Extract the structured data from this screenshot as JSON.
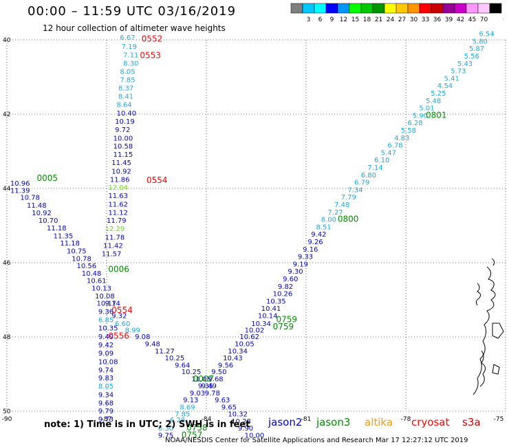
{
  "header": {
    "title": "00:00 – 11:59 UTC 03/16/2019",
    "subtitle": "12 hour collection of altimeter wave heights"
  },
  "colorbar": {
    "unit": "(ft)",
    "swatches": [
      {
        "label": "",
        "color": "#7f7f7f"
      },
      {
        "label": "3",
        "color": "#00c8ff"
      },
      {
        "label": "6",
        "color": "#00ffff"
      },
      {
        "label": "9",
        "color": "#0000ff"
      },
      {
        "label": "12",
        "color": "#0096ff"
      },
      {
        "label": "15",
        "color": "#00ff00"
      },
      {
        "label": "18",
        "color": "#00c800"
      },
      {
        "label": "21",
        "color": "#009600"
      },
      {
        "label": "24",
        "color": "#ffff00"
      },
      {
        "label": "27",
        "color": "#ffc800"
      },
      {
        "label": "30",
        "color": "#ff9600"
      },
      {
        "label": "33",
        "color": "#ff0000"
      },
      {
        "label": "36",
        "color": "#c80000"
      },
      {
        "label": "39",
        "color": "#960096"
      },
      {
        "label": "42",
        "color": "#c800c8"
      },
      {
        "label": "45",
        "color": "#ff96ff"
      },
      {
        "label": "70",
        "color": "#ffc8ff"
      },
      {
        "label": "",
        "color": "#000000"
      }
    ]
  },
  "axes": {
    "lat_ticks": [
      "40",
      "42",
      "44",
      "46",
      "48",
      "50"
    ],
    "lon_ticks": [
      "-90",
      "-87",
      "-84",
      "-81",
      "-78",
      "-75"
    ]
  },
  "series_colors": {
    "jason2": "#0000c8",
    "jason3": "#008c00",
    "altika": "#ff9600",
    "cryosat": "#ff0000",
    "s3a": "#c80000",
    "cyan": "#1eaadc",
    "lime": "#64e600"
  },
  "observations": [
    {
      "v": "6.67",
      "lon": -86.6,
      "lat": 40.0,
      "c": "cyan"
    },
    {
      "v": "7.19",
      "lon": -86.55,
      "lat": 40.24,
      "c": "cyan"
    },
    {
      "v": "7.11",
      "lon": -86.5,
      "lat": 40.47,
      "c": "cyan"
    },
    {
      "v": "8.30",
      "lon": -86.5,
      "lat": 40.69,
      "c": "cyan"
    },
    {
      "v": "8.05",
      "lon": -86.6,
      "lat": 40.92,
      "c": "cyan"
    },
    {
      "v": "7.85",
      "lon": -86.6,
      "lat": 41.14,
      "c": "cyan"
    },
    {
      "v": "8.37",
      "lon": -86.65,
      "lat": 41.36,
      "c": "cyan"
    },
    {
      "v": "8.41",
      "lon": -86.65,
      "lat": 41.58,
      "c": "cyan"
    },
    {
      "v": "8.64",
      "lon": -86.7,
      "lat": 41.81,
      "c": "cyan"
    },
    {
      "v": "10.40",
      "lon": -86.7,
      "lat": 42.04,
      "c": "jason2"
    },
    {
      "v": "10.19",
      "lon": -86.75,
      "lat": 42.26,
      "c": "jason2"
    },
    {
      "v": "9.72",
      "lon": -86.75,
      "lat": 42.48,
      "c": "jason2"
    },
    {
      "v": "10.00",
      "lon": -86.8,
      "lat": 42.71,
      "c": "jason2"
    },
    {
      "v": "10.58",
      "lon": -86.8,
      "lat": 42.93,
      "c": "jason2"
    },
    {
      "v": "11.15",
      "lon": -86.8,
      "lat": 43.15,
      "c": "jason2"
    },
    {
      "v": "11.45",
      "lon": -86.85,
      "lat": 43.37,
      "c": "jason2"
    },
    {
      "v": "10.92",
      "lon": -86.85,
      "lat": 43.6,
      "c": "jason2"
    },
    {
      "v": "11.86",
      "lon": -86.9,
      "lat": 43.82,
      "c": "jason2"
    },
    {
      "v": "12.04",
      "lon": -86.95,
      "lat": 44.04,
      "c": "lime"
    },
    {
      "v": "11.63",
      "lon": -86.95,
      "lat": 44.26,
      "c": "jason2"
    },
    {
      "v": "11.62",
      "lon": -86.95,
      "lat": 44.49,
      "c": "jason2"
    },
    {
      "v": "11.12",
      "lon": -86.95,
      "lat": 44.71,
      "c": "jason2"
    },
    {
      "v": "11.79",
      "lon": -87.0,
      "lat": 44.93,
      "c": "jason2"
    },
    {
      "v": "12.29",
      "lon": -87.05,
      "lat": 45.15,
      "c": "lime"
    },
    {
      "v": "11.78",
      "lon": -87.05,
      "lat": 45.38,
      "c": "jason2"
    },
    {
      "v": "11.42",
      "lon": -87.1,
      "lat": 45.6,
      "c": "jason2"
    },
    {
      "v": "11.57",
      "lon": -87.15,
      "lat": 45.82,
      "c": "jason2"
    },
    {
      "v": "10.96",
      "lon": -89.9,
      "lat": 43.93,
      "c": "jason2"
    },
    {
      "v": "11.39",
      "lon": -89.9,
      "lat": 44.12,
      "c": "jason2"
    },
    {
      "v": "10.78",
      "lon": -89.6,
      "lat": 44.31,
      "c": "jason2"
    },
    {
      "v": "11.48",
      "lon": -89.4,
      "lat": 44.52,
      "c": "jason2"
    },
    {
      "v": "10.92",
      "lon": -89.25,
      "lat": 44.72,
      "c": "jason2"
    },
    {
      "v": "10.70",
      "lon": -89.05,
      "lat": 44.93,
      "c": "jason2"
    },
    {
      "v": "11.18",
      "lon": -88.8,
      "lat": 45.13,
      "c": "jason2"
    },
    {
      "v": "11.35",
      "lon": -88.6,
      "lat": 45.34,
      "c": "jason2"
    },
    {
      "v": "11.18",
      "lon": -88.4,
      "lat": 45.54,
      "c": "jason2"
    },
    {
      "v": "10.75",
      "lon": -88.2,
      "lat": 45.75,
      "c": "jason2"
    },
    {
      "v": "10.78",
      "lon": -88.05,
      "lat": 45.95,
      "c": "jason2"
    },
    {
      "v": "10.56",
      "lon": -87.9,
      "lat": 46.15,
      "c": "jason2"
    },
    {
      "v": "10.48",
      "lon": -87.75,
      "lat": 46.35,
      "c": "jason2"
    },
    {
      "v": "10.61",
      "lon": -87.6,
      "lat": 46.55,
      "c": "jason2"
    },
    {
      "v": "10.13",
      "lon": -87.45,
      "lat": 46.75,
      "c": "jason2"
    },
    {
      "v": "10.08",
      "lon": -87.35,
      "lat": 46.96,
      "c": "jason2"
    },
    {
      "v": "10.17",
      "lon": -87.3,
      "lat": 47.16,
      "c": "jason2"
    },
    {
      "v": "9.14",
      "lon": -87.05,
      "lat": 47.16,
      "c": "jason2"
    },
    {
      "v": "9.36",
      "lon": -87.25,
      "lat": 47.38,
      "c": "jason2"
    },
    {
      "v": "9.32",
      "lon": -86.85,
      "lat": 47.49,
      "c": "jason2"
    },
    {
      "v": "6.85",
      "lon": -87.25,
      "lat": 47.6,
      "c": "cyan"
    },
    {
      "v": "6.60",
      "lon": -86.75,
      "lat": 47.7,
      "c": "cyan"
    },
    {
      "v": "10.35",
      "lon": -87.25,
      "lat": 47.82,
      "c": "jason2"
    },
    {
      "v": "8.99",
      "lon": -86.45,
      "lat": 47.88,
      "c": "cyan"
    },
    {
      "v": "9.49",
      "lon": -87.25,
      "lat": 48.06,
      "c": "jason2"
    },
    {
      "v": "9.08",
      "lon": -86.15,
      "lat": 48.06,
      "c": "jason2"
    },
    {
      "v": "9.42",
      "lon": -87.25,
      "lat": 48.28,
      "c": "jason2"
    },
    {
      "v": "9.48",
      "lon": -85.85,
      "lat": 48.25,
      "c": "jason2"
    },
    {
      "v": "9.09",
      "lon": -87.25,
      "lat": 48.5,
      "c": "jason2"
    },
    {
      "v": "11.27",
      "lon": -85.55,
      "lat": 48.44,
      "c": "jason2"
    },
    {
      "v": "10.08",
      "lon": -87.25,
      "lat": 48.73,
      "c": "jason2"
    },
    {
      "v": "10.25",
      "lon": -85.25,
      "lat": 48.63,
      "c": "jason2"
    },
    {
      "v": "9.74",
      "lon": -87.25,
      "lat": 48.95,
      "c": "jason2"
    },
    {
      "v": "9.64",
      "lon": -84.95,
      "lat": 48.82,
      "c": "jason2"
    },
    {
      "v": "9.83",
      "lon": -87.25,
      "lat": 49.17,
      "c": "jason2"
    },
    {
      "v": "10.25",
      "lon": -84.75,
      "lat": 49.0,
      "c": "jason2"
    },
    {
      "v": "8.05",
      "lon": -87.25,
      "lat": 49.39,
      "c": "cyan"
    },
    {
      "v": "11.05",
      "lon": -84.45,
      "lat": 49.19,
      "c": "jason2"
    },
    {
      "v": "9.34",
      "lon": -87.25,
      "lat": 49.62,
      "c": "jason2"
    },
    {
      "v": "9.35",
      "lon": -84.25,
      "lat": 49.38,
      "c": "jason2"
    },
    {
      "v": "9.68",
      "lon": -87.25,
      "lat": 49.84,
      "c": "jason2"
    },
    {
      "v": "9.78",
      "lon": -84.05,
      "lat": 49.57,
      "c": "jason2"
    },
    {
      "v": "9.79",
      "lon": -87.25,
      "lat": 50.06,
      "c": "jason2"
    },
    {
      "v": "9.63",
      "lon": -83.75,
      "lat": 49.76,
      "c": "jason2"
    },
    {
      "v": "9.73",
      "lon": -87.25,
      "lat": 50.28,
      "c": "jason2"
    },
    {
      "v": "9.65",
      "lon": -83.55,
      "lat": 49.95,
      "c": "jason2"
    },
    {
      "v": "10.32",
      "lon": -83.35,
      "lat": 50.14,
      "c": "jason2"
    },
    {
      "v": "10.28",
      "lon": -83.25,
      "lat": 50.33,
      "c": "jason2"
    },
    {
      "v": "9.90",
      "lon": -83.05,
      "lat": 50.52,
      "c": "jason2"
    },
    {
      "v": "10.00",
      "lon": -82.85,
      "lat": 50.71,
      "c": "jason2"
    },
    {
      "v": "9.75",
      "lon": -85.45,
      "lat": 50.71,
      "c": "jason2"
    },
    {
      "v": "6.30",
      "lon": -85.45,
      "lat": 50.52,
      "c": "cyan"
    },
    {
      "v": "6.28",
      "lon": -85.1,
      "lat": 50.3,
      "c": "cyan"
    },
    {
      "v": "7.85",
      "lon": -84.95,
      "lat": 50.14,
      "c": "cyan"
    },
    {
      "v": "8.69",
      "lon": -84.8,
      "lat": 49.95,
      "c": "cyan"
    },
    {
      "v": "9.13",
      "lon": -84.7,
      "lat": 49.76,
      "c": "jason2"
    },
    {
      "v": "9.03",
      "lon": -84.5,
      "lat": 49.57,
      "c": "jason2"
    },
    {
      "v": "9.49",
      "lon": -84.15,
      "lat": 49.38,
      "c": "jason2"
    },
    {
      "v": "9.68",
      "lon": -83.95,
      "lat": 49.19,
      "c": "jason2"
    },
    {
      "v": "9.50",
      "lon": -83.85,
      "lat": 49.0,
      "c": "jason2"
    },
    {
      "v": "9.56",
      "lon": -83.65,
      "lat": 48.82,
      "c": "jason2"
    },
    {
      "v": "10.43",
      "lon": -83.5,
      "lat": 48.63,
      "c": "jason2"
    },
    {
      "v": "10.34",
      "lon": -83.35,
      "lat": 48.44,
      "c": "jason2"
    },
    {
      "v": "10.05",
      "lon": -83.15,
      "lat": 48.25,
      "c": "jason2"
    },
    {
      "v": "10.62",
      "lon": -83.0,
      "lat": 48.06,
      "c": "jason2"
    },
    {
      "v": "10.02",
      "lon": -82.85,
      "lat": 47.88,
      "c": "jason2"
    },
    {
      "v": "10.34",
      "lon": -82.65,
      "lat": 47.7,
      "c": "jason2"
    },
    {
      "v": "10.14",
      "lon": -82.45,
      "lat": 47.49,
      "c": "jason2"
    },
    {
      "v": "10.41",
      "lon": -82.35,
      "lat": 47.3,
      "c": "jason2"
    },
    {
      "v": "10.35",
      "lon": -82.2,
      "lat": 47.1,
      "c": "jason2"
    },
    {
      "v": "10.26",
      "lon": -82.0,
      "lat": 46.9,
      "c": "jason2"
    },
    {
      "v": "9.82",
      "lon": -81.85,
      "lat": 46.7,
      "c": "jason2"
    },
    {
      "v": "9.60",
      "lon": -81.7,
      "lat": 46.5,
      "c": "jason2"
    },
    {
      "v": "9.30",
      "lon": -81.55,
      "lat": 46.3,
      "c": "jason2"
    },
    {
      "v": "9.19",
      "lon": -81.4,
      "lat": 46.1,
      "c": "jason2"
    },
    {
      "v": "9.33",
      "lon": -81.25,
      "lat": 45.9,
      "c": "jason2"
    },
    {
      "v": "9.16",
      "lon": -81.1,
      "lat": 45.7,
      "c": "jason2"
    },
    {
      "v": "9.26",
      "lon": -80.95,
      "lat": 45.5,
      "c": "jason2"
    },
    {
      "v": "9.42",
      "lon": -80.85,
      "lat": 45.3,
      "c": "jason2"
    },
    {
      "v": "8.51",
      "lon": -80.7,
      "lat": 45.1,
      "c": "cyan"
    },
    {
      "v": "8.00",
      "lon": -80.55,
      "lat": 44.9,
      "c": "cyan"
    },
    {
      "v": "7.27",
      "lon": -80.35,
      "lat": 44.7,
      "c": "cyan"
    },
    {
      "v": "7.48",
      "lon": -80.15,
      "lat": 44.5,
      "c": "cyan"
    },
    {
      "v": "7.79",
      "lon": -79.95,
      "lat": 44.3,
      "c": "cyan"
    },
    {
      "v": "7.34",
      "lon": -79.75,
      "lat": 44.1,
      "c": "cyan"
    },
    {
      "v": "6.79",
      "lon": -79.55,
      "lat": 43.9,
      "c": "cyan"
    },
    {
      "v": "6.80",
      "lon": -79.35,
      "lat": 43.7,
      "c": "cyan"
    },
    {
      "v": "7.14",
      "lon": -79.15,
      "lat": 43.5,
      "c": "cyan"
    },
    {
      "v": "6.10",
      "lon": -78.95,
      "lat": 43.3,
      "c": "cyan"
    },
    {
      "v": "5.47",
      "lon": -78.75,
      "lat": 43.1,
      "c": "cyan"
    },
    {
      "v": "6.78",
      "lon": -78.55,
      "lat": 42.9,
      "c": "cyan"
    },
    {
      "v": "4.83",
      "lon": -78.35,
      "lat": 42.7,
      "c": "cyan"
    },
    {
      "v": "5.58",
      "lon": -78.15,
      "lat": 42.5,
      "c": "cyan"
    },
    {
      "v": "6.28",
      "lon": -77.95,
      "lat": 42.3,
      "c": "cyan"
    },
    {
      "v": "5.90",
      "lon": -77.8,
      "lat": 42.1,
      "c": "cyan"
    },
    {
      "v": "5.01",
      "lon": -77.6,
      "lat": 41.9,
      "c": "cyan"
    },
    {
      "v": "5.48",
      "lon": -77.4,
      "lat": 41.7,
      "c": "cyan"
    },
    {
      "v": "5.25",
      "lon": -77.25,
      "lat": 41.5,
      "c": "cyan"
    },
    {
      "v": "4.54",
      "lon": -77.05,
      "lat": 41.3,
      "c": "cyan"
    },
    {
      "v": "5.41",
      "lon": -76.85,
      "lat": 41.1,
      "c": "cyan"
    },
    {
      "v": "5.73",
      "lon": -76.65,
      "lat": 40.9,
      "c": "cyan"
    },
    {
      "v": "5.43",
      "lon": -76.45,
      "lat": 40.7,
      "c": "cyan"
    },
    {
      "v": "5.56",
      "lon": -76.25,
      "lat": 40.5,
      "c": "cyan"
    },
    {
      "v": "5.87",
      "lon": -76.1,
      "lat": 40.3,
      "c": "cyan"
    },
    {
      "v": "5.80",
      "lon": -76.0,
      "lat": 40.1,
      "c": "cyan"
    },
    {
      "v": "6.54",
      "lon": -75.8,
      "lat": 39.9,
      "c": "cyan"
    }
  ],
  "pass_labels": [
    {
      "t": "0552",
      "lon": -85.95,
      "lat": 40.05,
      "c": "cryosat"
    },
    {
      "t": "0553",
      "lon": -86.0,
      "lat": 40.49,
      "c": "cryosat"
    },
    {
      "t": "0554",
      "lon": -85.8,
      "lat": 43.85,
      "c": "cryosat"
    },
    {
      "t": "0005",
      "lon": -89.1,
      "lat": 43.8,
      "c": "jason3"
    },
    {
      "t": "0006",
      "lon": -86.95,
      "lat": 46.25,
      "c": "jason3"
    },
    {
      "t": "0554",
      "lon": -86.85,
      "lat": 47.35,
      "c": "cryosat"
    },
    {
      "t": "0556",
      "lon": -86.95,
      "lat": 48.05,
      "c": "cryosat"
    },
    {
      "t": "0801",
      "lon": -77.4,
      "lat": 42.1,
      "c": "jason3"
    },
    {
      "t": "0800",
      "lon": -80.05,
      "lat": 44.9,
      "c": "jason3"
    },
    {
      "t": "0759",
      "lon": -81.9,
      "lat": 47.6,
      "c": "jason3"
    },
    {
      "t": "0759",
      "lon": -82.0,
      "lat": 47.8,
      "c": "jason3"
    },
    {
      "t": "0007",
      "lon": -84.4,
      "lat": 49.2,
      "c": "jason3"
    },
    {
      "t": "0758",
      "lon": -84.6,
      "lat": 50.52,
      "c": "jason3"
    },
    {
      "t": "0757",
      "lon": -84.75,
      "lat": 50.71,
      "c": "jason3"
    }
  ],
  "footer": {
    "note": "note: 1) Time is in UTC; 2) SWH is in feet",
    "legend": [
      {
        "name": "jason2",
        "color": "#0000c8"
      },
      {
        "name": "jason3",
        "color": "#008c00"
      },
      {
        "name": "altika",
        "color": "#ff9600"
      },
      {
        "name": "cryosat",
        "color": "#ff0000"
      },
      {
        "name": "s3a",
        "color": "#c80000"
      }
    ],
    "credit": "NOAA/NESDIS Center for Satellite Applications and Research    Mar 17 12:27:12 UTC 2019"
  }
}
